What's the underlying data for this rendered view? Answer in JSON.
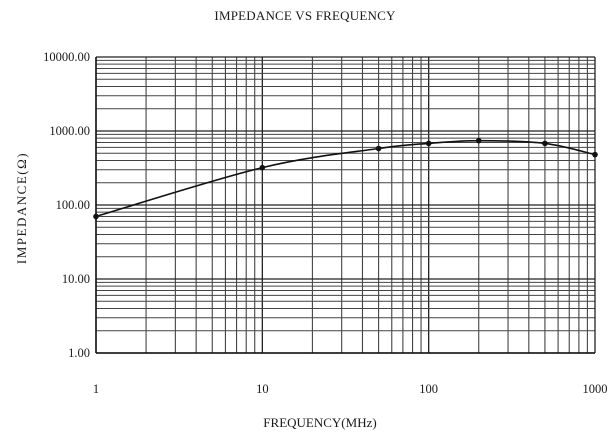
{
  "chart_data": {
    "type": "line",
    "title": "IMPEDANCE VS FREQUENCY",
    "xlabel": "FREQUENCY(MHz)",
    "ylabel": "IMPEDANCE(Ω)",
    "x_scale": "log",
    "y_scale": "log",
    "xlim": [
      1,
      1000
    ],
    "ylim": [
      1,
      10000
    ],
    "grid": true,
    "x_ticks": [
      {
        "value": 1,
        "label": "1"
      },
      {
        "value": 10,
        "label": "10"
      },
      {
        "value": 100,
        "label": "100"
      },
      {
        "value": 1000,
        "label": "1000"
      }
    ],
    "y_ticks": [
      {
        "value": 1,
        "label": "1.00"
      },
      {
        "value": 10,
        "label": "10.00"
      },
      {
        "value": 100,
        "label": "100.00"
      },
      {
        "value": 1000,
        "label": "1000.00"
      },
      {
        "value": 10000,
        "label": "10000.00"
      }
    ],
    "series": [
      {
        "x": [
          1,
          10,
          50,
          100,
          200,
          500,
          1000
        ],
        "y": [
          70,
          320,
          580,
          680,
          740,
          680,
          480
        ]
      }
    ]
  }
}
